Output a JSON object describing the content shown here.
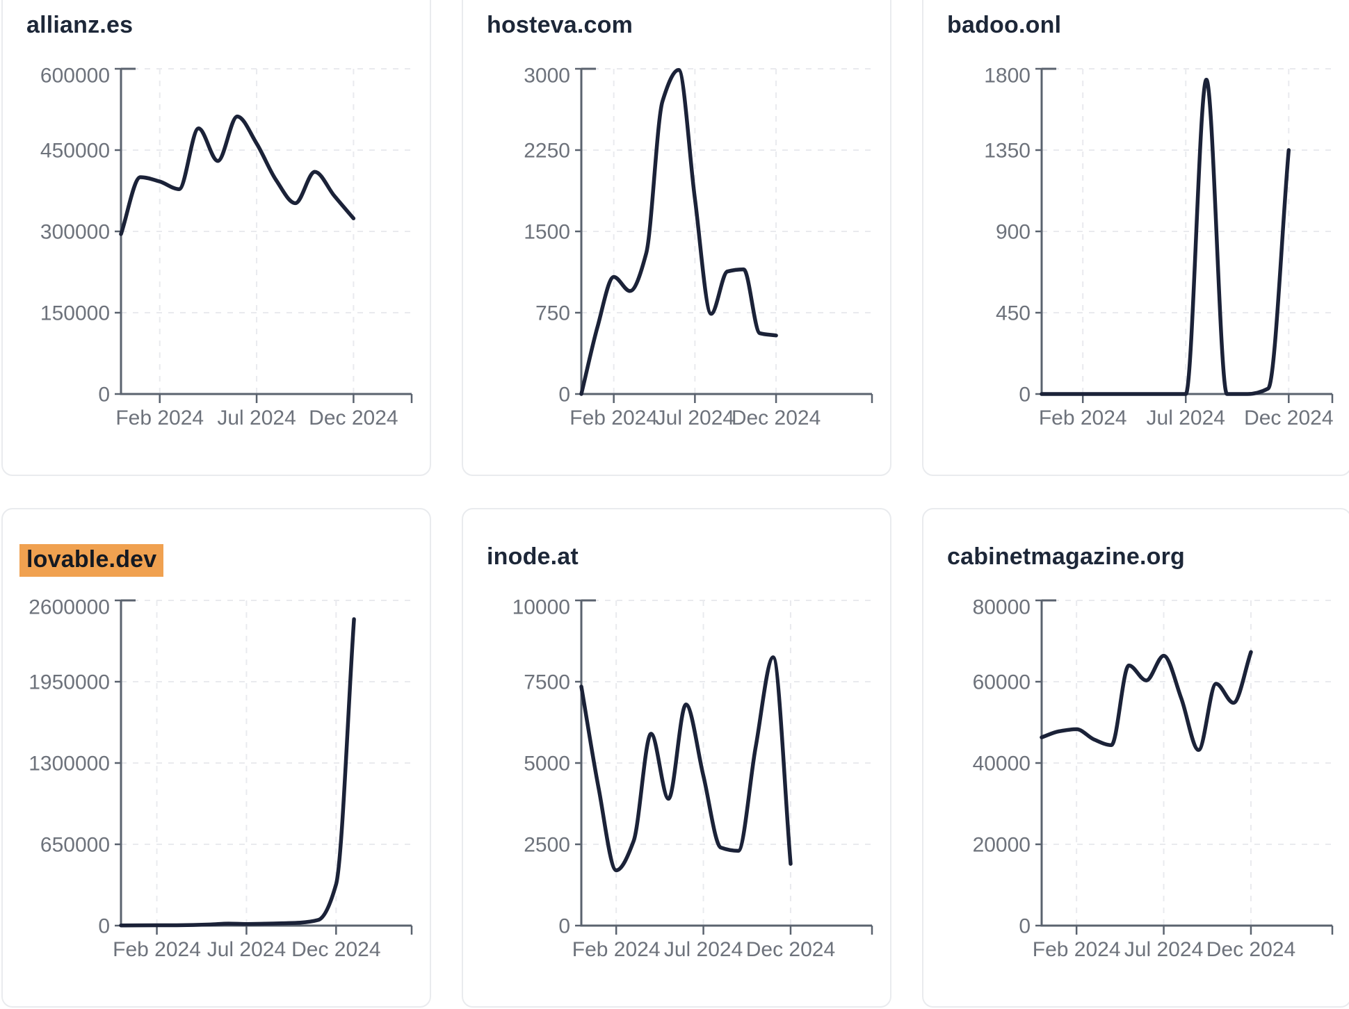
{
  "page": {
    "background": "#ffffff",
    "layout": "3x2-grid-of-sparkline-cards"
  },
  "colors": {
    "line": "#1b2238",
    "title": "#1d2738",
    "axis": "#5a626e",
    "tick_label": "#6d727b",
    "gridline": "#e9eaee",
    "card_border": "#e9ebee",
    "highlight_bg": "#f0a150",
    "highlight_text": "#141922"
  },
  "chart_data": [
    {
      "type": "line",
      "title": "allianz.es",
      "highlighted": false,
      "ylim": [
        0,
        600000
      ],
      "y_ticks": [
        0,
        150000,
        300000,
        450000,
        600000
      ],
      "x_tick_labels": [
        "Feb 2024",
        "Jul 2024",
        "Dec 2024"
      ],
      "x_tick_month_indices": [
        2,
        7,
        12
      ],
      "dec_gridline_frac": 0.8,
      "months": [
        "Dec 2023",
        "Jan 2024",
        "Feb 2024",
        "Mar 2024",
        "Apr 2024",
        "May 2024",
        "Jun 2024",
        "Jul 2024",
        "Aug 2024",
        "Sep 2024",
        "Oct 2024",
        "Nov 2024",
        "Dec 2024"
      ],
      "values": [
        295000,
        400000,
        392000,
        378000,
        490000,
        430000,
        512000,
        462000,
        395000,
        352000,
        410000,
        366000,
        324000
      ]
    },
    {
      "type": "line",
      "title": "hosteva.com",
      "highlighted": false,
      "ylim": [
        0,
        3000
      ],
      "y_ticks": [
        0,
        750,
        1500,
        2250,
        3000
      ],
      "x_tick_labels": [
        "Feb 2024",
        "Jul 2024",
        "Dec 2024"
      ],
      "x_tick_month_indices": [
        2,
        7,
        12
      ],
      "dec_gridline_frac": 0.67,
      "months": [
        "Dec 2023",
        "Jan 2024",
        "Feb 2024",
        "Mar 2024",
        "Apr 2024",
        "May 2024",
        "Jun 2024",
        "Jul 2024",
        "Aug 2024",
        "Sep 2024",
        "Oct 2024",
        "Nov 2024",
        "Dec 2024"
      ],
      "values": [
        0,
        620,
        1080,
        950,
        1300,
        2700,
        2990,
        1800,
        740,
        1130,
        1150,
        560,
        540
      ]
    },
    {
      "type": "line",
      "title": "badoo.onl",
      "highlighted": false,
      "ylim": [
        0,
        1800
      ],
      "y_ticks": [
        0,
        450,
        900,
        1350,
        1800
      ],
      "x_tick_labels": [
        "Feb 2024",
        "Jul 2024",
        "Dec 2024"
      ],
      "x_tick_month_indices": [
        2,
        7,
        12
      ],
      "dec_gridline_frac": 0.85,
      "months": [
        "Dec 2023",
        "Jan 2024",
        "Feb 2024",
        "Mar 2024",
        "Apr 2024",
        "May 2024",
        "Jun 2024",
        "Jul 2024",
        "Aug 2024",
        "Sep 2024",
        "Oct 2024",
        "Nov 2024",
        "Dec 2024"
      ],
      "values": [
        0,
        0,
        0,
        0,
        0,
        0,
        0,
        0,
        1740,
        0,
        0,
        30,
        1350
      ]
    },
    {
      "type": "line",
      "title": "lovable.dev",
      "highlighted": true,
      "ylim": [
        0,
        2600000
      ],
      "y_ticks": [
        0,
        650000,
        1300000,
        1950000,
        2600000
      ],
      "x_tick_labels": [
        "Feb 2024",
        "Jul 2024",
        "Dec 2024"
      ],
      "x_tick_month_indices": [
        2,
        7,
        12
      ],
      "dec_gridline_frac": 0.74,
      "months": [
        "Dec 2023",
        "Jan 2024",
        "Feb 2024",
        "Mar 2024",
        "Apr 2024",
        "May 2024",
        "Jun 2024",
        "Jul 2024",
        "Aug 2024",
        "Sep 2024",
        "Oct 2024",
        "Nov 2024",
        "Dec 2024",
        "Jan 2025"
      ],
      "values": [
        1500,
        2000,
        2500,
        3000,
        5000,
        9000,
        16000,
        13000,
        15000,
        19000,
        24000,
        45000,
        330000,
        2450000
      ]
    },
    {
      "type": "line",
      "title": "inode.at",
      "highlighted": false,
      "ylim": [
        0,
        10000
      ],
      "y_ticks": [
        0,
        2500,
        5000,
        7500,
        10000
      ],
      "x_tick_labels": [
        "Feb 2024",
        "Jul 2024",
        "Dec 2024"
      ],
      "x_tick_month_indices": [
        2,
        7,
        12
      ],
      "dec_gridline_frac": 0.72,
      "months": [
        "Dec 2023",
        "Jan 2024",
        "Feb 2024",
        "Mar 2024",
        "Apr 2024",
        "May 2024",
        "Jun 2024",
        "Jul 2024",
        "Aug 2024",
        "Sep 2024",
        "Oct 2024",
        "Nov 2024",
        "Dec 2024"
      ],
      "values": [
        7350,
        4200,
        1700,
        2600,
        5900,
        3900,
        6800,
        4600,
        2400,
        2300,
        5500,
        8250,
        1900
      ]
    },
    {
      "type": "line",
      "title": "cabinetmagazine.org",
      "highlighted": false,
      "ylim": [
        0,
        80000
      ],
      "y_ticks": [
        0,
        20000,
        40000,
        60000,
        80000
      ],
      "x_tick_labels": [
        "Feb 2024",
        "Jul 2024",
        "Dec 2024"
      ],
      "x_tick_month_indices": [
        2,
        7,
        12
      ],
      "dec_gridline_frac": 0.72,
      "months": [
        "Dec 2023",
        "Jan 2024",
        "Feb 2024",
        "Mar 2024",
        "Apr 2024",
        "May 2024",
        "Jun 2024",
        "Jul 2024",
        "Aug 2024",
        "Sep 2024",
        "Oct 2024",
        "Nov 2024",
        "Dec 2024"
      ],
      "values": [
        46300,
        47800,
        48300,
        45800,
        44400,
        64000,
        60300,
        66400,
        56000,
        43200,
        59500,
        54800,
        67300
      ]
    }
  ]
}
